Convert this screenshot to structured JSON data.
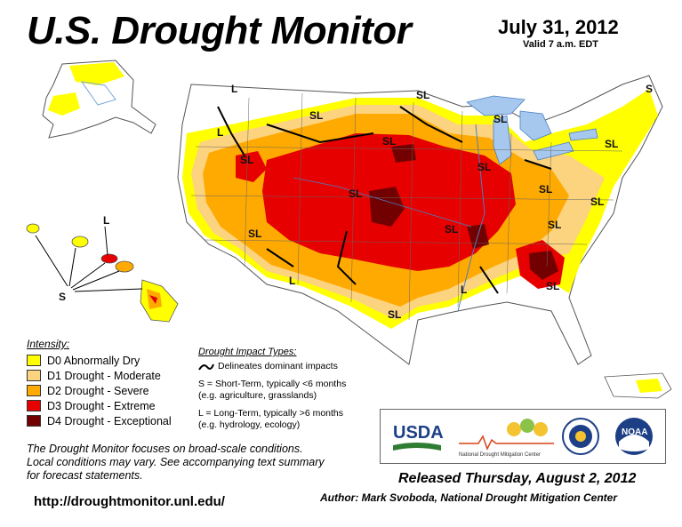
{
  "header": {
    "title": "U.S. Drought Monitor",
    "date": "July 31, 2012",
    "valid": "Valid 7 a.m. EDT"
  },
  "colors": {
    "d0": "#ffff00",
    "d1": "#fcd37f",
    "d2": "#ffaa00",
    "d3": "#e60000",
    "d4": "#730000",
    "water": "#a6c8ee",
    "land": "#ffffff"
  },
  "map": {
    "labels": {
      "sl_north_idaho": "SL",
      "l_north_rockies": "L",
      "sl_montana": "SL",
      "l_oregon": "L",
      "sl_great_basin": "SL",
      "sl_north_dakota": "SL",
      "sl_minnesota": "SL",
      "sl_south_dakota": "SL",
      "sl_michigan": "SL",
      "sl_iowa": "SL",
      "sl_colorado": "SL",
      "sl_arizona": "SL",
      "l_new_mexico": "L",
      "sl_south_texas": "SL",
      "l_louisiana": "L",
      "sl_georgia": "SL",
      "sl_ohio": "SL",
      "sl_mid_atlantic": "SL",
      "sl_new_england": "SL",
      "s_maine": "S",
      "l_hawaii": "L",
      "s_hawaii": "S"
    }
  },
  "legend": {
    "heading": "Intensity:",
    "items": [
      {
        "label": "D0 Abnormally Dry"
      },
      {
        "label": "D1 Drought - Moderate"
      },
      {
        "label": "D2 Drought - Severe"
      },
      {
        "label": "D3 Drought - Extreme"
      },
      {
        "label": "D4 Drought - Exceptional"
      }
    ]
  },
  "impacts": {
    "heading": "Drought Impact Types:",
    "delineates": "Delineates dominant impacts",
    "short_term": "S = Short-Term, typically <6 months",
    "short_term_eg": "(e.g. agriculture, grasslands)",
    "long_term": "L = Long-Term, typically >6 months",
    "long_term_eg": "(e.g. hydrology, ecology)"
  },
  "note": {
    "line1": "The Drought Monitor focuses on broad-scale conditions.",
    "line2": "Local conditions may vary. See accompanying text summary",
    "line3": "for forecast statements."
  },
  "url": "http://droughtmonitor.unl.edu/",
  "logos": {
    "usda": "USDA",
    "ndmc": "National Drought Mitigation Center",
    "noaa": "NOAA"
  },
  "footer": {
    "released": "Released Thursday, August 2, 2012",
    "author": "Author: Mark Svoboda, National Drought Mitigation Center"
  }
}
